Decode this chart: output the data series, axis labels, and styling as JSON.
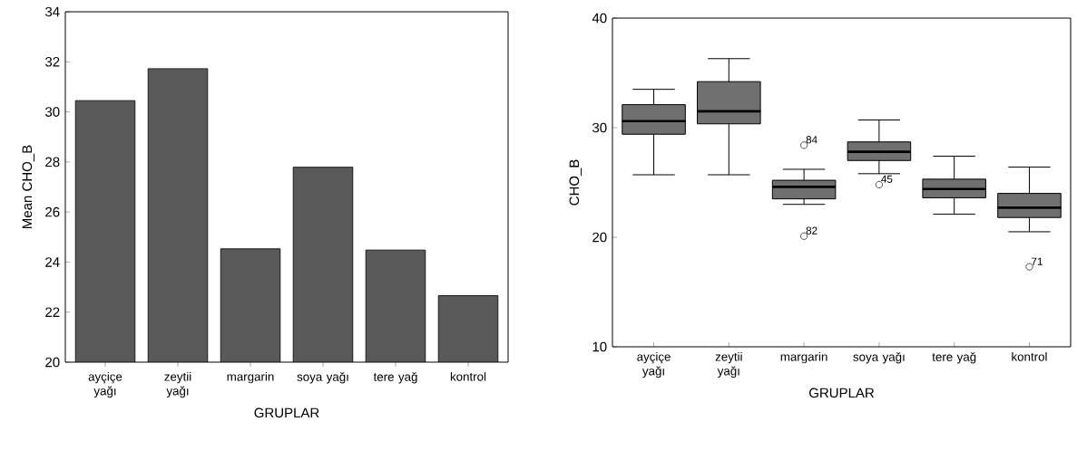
{
  "chart_data": [
    {
      "type": "bar",
      "xlabel": "GRUPLAR",
      "ylabel": "Mean CHO_B",
      "categories": [
        "ayçiçe yağı",
        "zeytii yağı",
        "margarin",
        "soya yağı",
        "tere yağ",
        "kontrol"
      ],
      "values": [
        30.45,
        31.73,
        24.53,
        27.79,
        24.48,
        22.66
      ],
      "color": "#595959",
      "ylim": [
        20,
        34
      ],
      "yticks": [
        20,
        22,
        24,
        26,
        28,
        30,
        32,
        34
      ],
      "grid": false
    },
    {
      "type": "box",
      "xlabel": "GRUPLAR",
      "ylabel": "CHO_B",
      "categories": [
        "ayçiçe yağı",
        "zeytii yağı",
        "margarin",
        "soya yağı",
        "tere yağ",
        "kontrol"
      ],
      "color": "#707070",
      "ylim": [
        10,
        40
      ],
      "yticks": [
        10,
        20,
        30,
        40
      ],
      "grid": false,
      "marker": "circle",
      "boxes": [
        {
          "low": 25.7,
          "q1": 29.4,
          "median": 30.6,
          "q3": 32.1,
          "high": 33.5
        },
        {
          "low": 25.7,
          "q1": 30.35,
          "median": 31.5,
          "q3": 34.2,
          "high": 36.3
        },
        {
          "low": 23.0,
          "q1": 23.5,
          "median": 24.6,
          "q3": 25.2,
          "high": 26.2,
          "outliers": [
            28.4,
            20.1
          ]
        },
        {
          "low": 25.8,
          "q1": 27.0,
          "median": 27.8,
          "q3": 28.7,
          "high": 30.7,
          "outliers": [
            24.8
          ]
        },
        {
          "low": 22.1,
          "q1": 23.6,
          "median": 24.4,
          "q3": 25.3,
          "high": 27.4
        },
        {
          "low": 20.5,
          "q1": 21.8,
          "median": 22.7,
          "q3": 24.0,
          "high": 26.4,
          "outliers": [
            17.3
          ]
        }
      ],
      "annotations": [
        "84",
        "82",
        "45",
        "71"
      ]
    }
  ]
}
